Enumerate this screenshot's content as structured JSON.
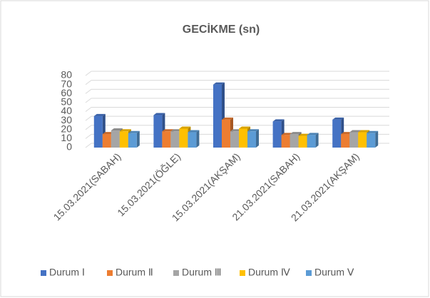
{
  "chart_data": {
    "type": "bar3d",
    "title": "GECİKME (sn)",
    "categories": [
      "15.03.2021(SABAH)",
      "15.03.2021(ÖĞLE)",
      "15.03.2021(AKŞAM)",
      "21.03.2021(SABAH)",
      "21.03.2021(AKŞAM)"
    ],
    "series": [
      {
        "name": "Durum Ⅰ",
        "color": "#4472c4",
        "values": [
          35,
          36,
          70,
          29,
          31
        ]
      },
      {
        "name": "Durum Ⅱ",
        "color": "#ed7d31",
        "values": [
          15,
          18,
          31,
          14,
          15
        ]
      },
      {
        "name": "Durum Ⅲ",
        "color": "#a5a5a5",
        "values": [
          19,
          18,
          18,
          15,
          17
        ]
      },
      {
        "name": "Durum Ⅳ",
        "color": "#ffc000",
        "values": [
          18,
          21,
          21,
          13,
          17
        ]
      },
      {
        "name": "Durum Ⅴ",
        "color": "#5b9bd5",
        "values": [
          16,
          17,
          18,
          14,
          16
        ]
      }
    ],
    "ylim": [
      0,
      80
    ],
    "yticks": [
      0,
      10,
      20,
      30,
      40,
      50,
      60,
      70,
      80
    ],
    "grid": true,
    "legend": "bottom"
  }
}
